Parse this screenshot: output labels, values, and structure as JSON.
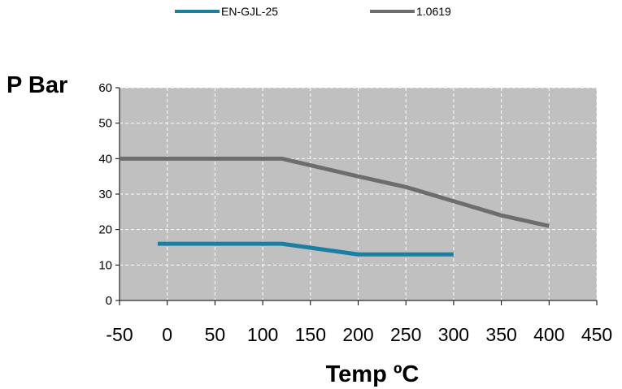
{
  "chart_data": {
    "type": "line",
    "xlabel": "Temp ºC",
    "ylabel": "P Bar",
    "xlim": [
      -50,
      450
    ],
    "ylim": [
      0,
      60
    ],
    "x_ticks": [
      "-50",
      "0",
      "50",
      "100",
      "150",
      "200",
      "250",
      "300",
      "350",
      "400",
      "450"
    ],
    "y_ticks": [
      "0",
      "10",
      "20",
      "30",
      "40",
      "50",
      "60"
    ],
    "grid": true,
    "legend_position": "top",
    "plot_background": "#c0c0c0",
    "series": [
      {
        "name": "EN-GJL-25",
        "color": "#1a7fa0",
        "x": [
          -10,
          120,
          200,
          300
        ],
        "y": [
          16,
          16,
          13,
          13
        ]
      },
      {
        "name": "1.0619",
        "color": "#6d6d6d",
        "x": [
          -50,
          120,
          200,
          250,
          300,
          350,
          400
        ],
        "y": [
          40,
          40,
          35,
          32,
          28,
          24,
          21
        ]
      }
    ]
  }
}
